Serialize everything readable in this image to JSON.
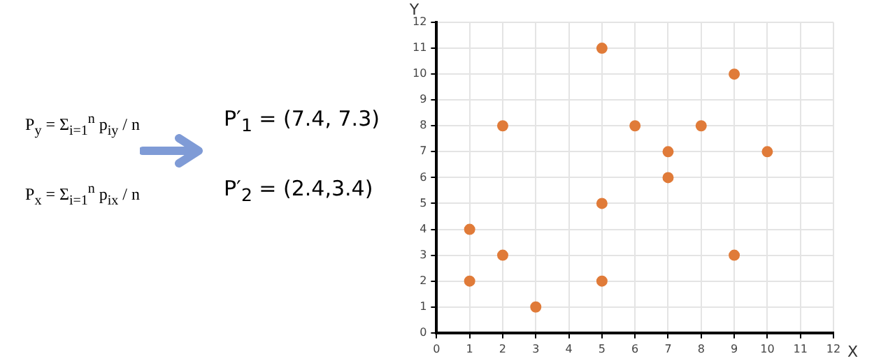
{
  "chart_data": {
    "type": "scatter",
    "xlabel": "X",
    "ylabel": "Y",
    "annotations": [
      "P$_{y}$ = Σ$_{i=1}$$^{n}$ p$_{iy}$ / n",
      "P$_{x}$ = Σ$_{i=1}$$^{n}$ p$_{ix}$ / n",
      "P′$_{1}$ = (7.4, 7.3)",
      "P′$_{2}$ = (2.4,3.4)"
    ],
    "series": [
      {
        "color": "#e07b39",
        "x": [
          1,
          1,
          2,
          2,
          3,
          5,
          5,
          5,
          6,
          7,
          7,
          8,
          9,
          9,
          10
        ],
        "values": [
          4,
          2,
          8,
          3,
          1,
          11,
          5,
          2,
          8,
          7,
          6,
          8,
          10,
          3,
          7
        ]
      }
    ],
    "xlim": [
      0,
      12
    ],
    "ylim": [
      0,
      12
    ],
    "xticks": [
      0,
      1,
      2,
      3,
      4,
      5,
      6,
      7,
      8,
      9,
      10,
      11,
      12
    ],
    "yticks": [
      0,
      1,
      2,
      3,
      4,
      5,
      6,
      7,
      8,
      9,
      10,
      11,
      12
    ],
    "grid": true,
    "marker": "circle",
    "legend": false
  }
}
